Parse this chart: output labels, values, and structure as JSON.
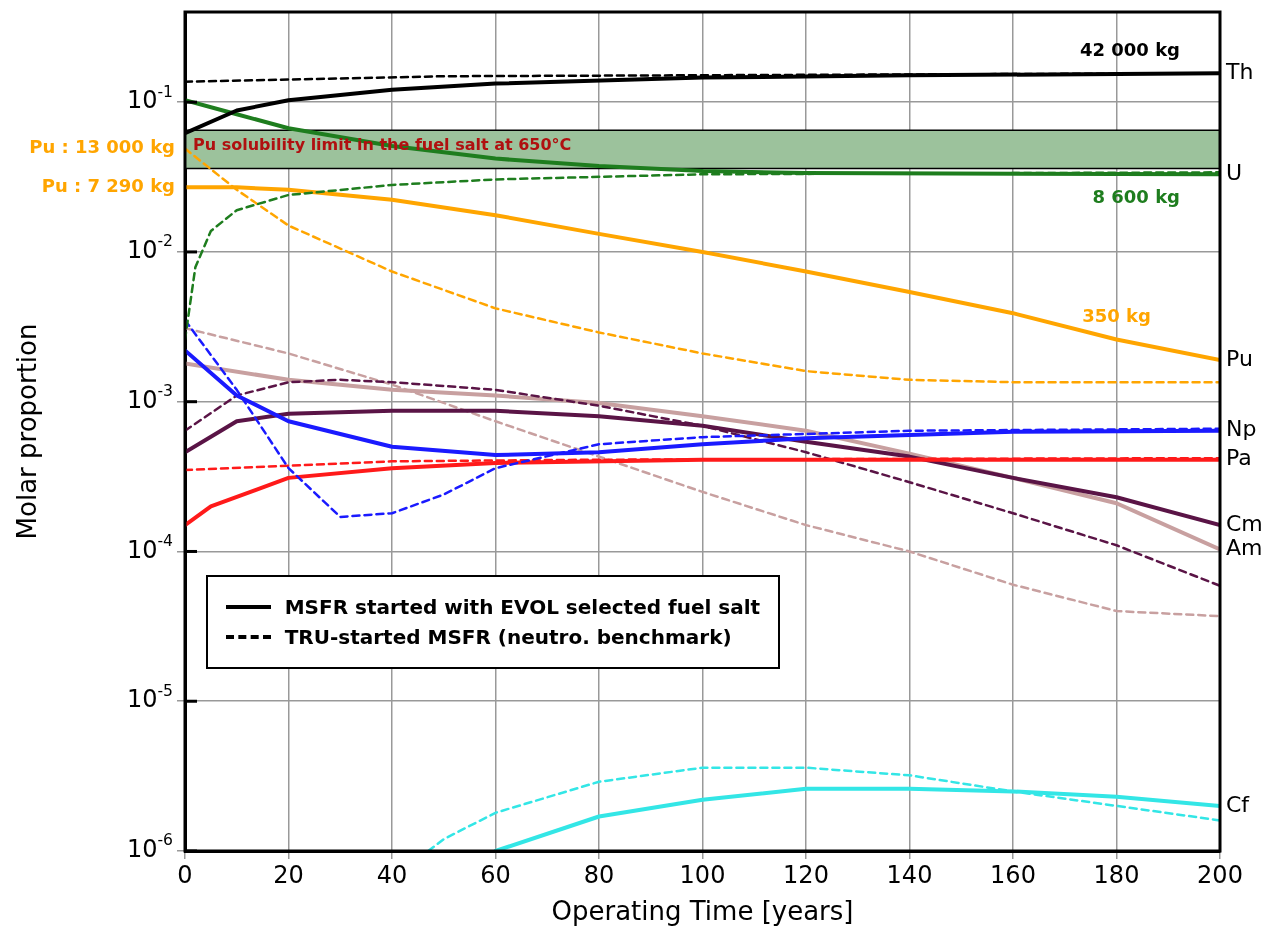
{
  "chart_data": {
    "type": "line",
    "xlabel": "Operating Time [years]",
    "ylabel": "Molar proportion",
    "log": "y",
    "grid": true,
    "legend": false,
    "xlim": [
      0,
      200
    ],
    "xticks": [
      0,
      20,
      40,
      60,
      80,
      100,
      120,
      140,
      160,
      180,
      200
    ],
    "ylim": [
      1e-06,
      0.4
    ],
    "yticks": [
      {
        "value": 1e-06,
        "label": "10$^{-6}$"
      },
      {
        "value": 1e-05,
        "label": "10$^{-5}$"
      },
      {
        "value": 0.0001,
        "label": "10$^{-4}$"
      },
      {
        "value": 0.001,
        "label": "10$^{-3}$"
      },
      {
        "value": 0.01,
        "label": "10$^{-2}$"
      },
      {
        "value": 0.1,
        "label": "10$^{-1}$"
      }
    ],
    "series": [
      {
        "name": "Th",
        "color": "#000000",
        "line_style": "solid",
        "x": [
          0,
          10,
          20,
          40,
          60,
          100,
          140,
          200
        ],
        "values": [
          0.062,
          0.088,
          0.103,
          0.121,
          0.133,
          0.146,
          0.151,
          0.156
        ]
      },
      {
        "color": "#000000",
        "line_style": "dashed",
        "x": [
          0,
          50,
          200
        ],
        "values": [
          0.137,
          0.149,
          0.156
        ]
      },
      {
        "name": "U",
        "color": "#1e7d1e",
        "line_style": "solid",
        "x": [
          0,
          10,
          20,
          40,
          60,
          80,
          100,
          120,
          200
        ],
        "values": [
          0.103,
          0.083,
          0.067,
          0.051,
          0.042,
          0.0375,
          0.0347,
          0.0336,
          0.033
        ]
      },
      {
        "color": "#1e7d1e",
        "line_style": "dashed",
        "x": [
          0,
          2,
          5,
          10,
          20,
          40,
          60,
          100,
          200
        ],
        "values": [
          0.0026,
          0.0079,
          0.0138,
          0.019,
          0.024,
          0.028,
          0.0305,
          0.033,
          0.034
        ]
      },
      {
        "name": "Pu",
        "color": "#ffa500",
        "line_style": "solid",
        "x": [
          0,
          10,
          20,
          40,
          60,
          80,
          100,
          120,
          140,
          160,
          180,
          200
        ],
        "values": [
          0.027,
          0.027,
          0.026,
          0.0223,
          0.0176,
          0.0132,
          0.01,
          0.0074,
          0.0054,
          0.0039,
          0.0026,
          0.0019
        ]
      },
      {
        "color": "#ffa500",
        "line_style": "dashed",
        "x": [
          0,
          10,
          20,
          40,
          60,
          80,
          100,
          120,
          140,
          160,
          200
        ],
        "values": [
          0.049,
          0.026,
          0.015,
          0.0074,
          0.0042,
          0.0029,
          0.0021,
          0.0016,
          0.0014,
          0.00135,
          0.00135
        ]
      },
      {
        "name": "Np",
        "color": "#1a1aff",
        "line_style": "solid",
        "x": [
          0,
          10,
          20,
          40,
          60,
          80,
          100,
          120,
          160,
          200
        ],
        "values": [
          0.0022,
          0.0011,
          0.00074,
          0.0005,
          0.00044,
          0.00046,
          0.00052,
          0.00057,
          0.00063,
          0.00064
        ]
      },
      {
        "color": "#1a1aff",
        "line_style": "dashed",
        "x": [
          0,
          10,
          20,
          30,
          40,
          50,
          60,
          80,
          100,
          140,
          200
        ],
        "values": [
          0.0035,
          0.0012,
          0.00036,
          0.00017,
          0.00018,
          0.00024,
          0.00036,
          0.00052,
          0.00058,
          0.00064,
          0.00066
        ]
      },
      {
        "name": "Pa",
        "color": "#ff1a1a",
        "line_style": "solid",
        "x": [
          0,
          5,
          20,
          40,
          60,
          100,
          200
        ],
        "values": [
          0.00015,
          0.0002,
          0.00031,
          0.00036,
          0.00039,
          0.00041,
          0.00041
        ]
      },
      {
        "color": "#ff1a1a",
        "line_style": "dashed",
        "x": [
          0,
          40,
          80,
          200
        ],
        "values": [
          0.00035,
          0.0004,
          0.00041,
          0.00042
        ]
      },
      {
        "name": "Cm",
        "color": "#5a1446",
        "line_style": "solid",
        "x": [
          0,
          10,
          20,
          40,
          60,
          80,
          100,
          120,
          140,
          160,
          180,
          200
        ],
        "values": [
          0.00046,
          0.00074,
          0.00083,
          0.00087,
          0.00087,
          0.0008,
          0.00069,
          0.00054,
          0.00043,
          0.00031,
          0.00023,
          0.00015
        ]
      },
      {
        "color": "#5a1446",
        "line_style": "dashed",
        "x": [
          0,
          10,
          20,
          30,
          40,
          60,
          80,
          100,
          120,
          140,
          160,
          180,
          200
        ],
        "values": [
          0.00064,
          0.0011,
          0.00135,
          0.0014,
          0.00135,
          0.0012,
          0.00094,
          0.00069,
          0.00046,
          0.00029,
          0.00018,
          0.00011,
          5.9e-05
        ]
      },
      {
        "name": "Am",
        "color": "#c8a0a0",
        "line_style": "solid",
        "x": [
          0,
          20,
          40,
          60,
          80,
          100,
          120,
          140,
          160,
          180,
          200
        ],
        "values": [
          0.0018,
          0.0014,
          0.0012,
          0.0011,
          0.00098,
          0.0008,
          0.00064,
          0.00045,
          0.00031,
          0.00021,
          0.000103
        ]
      },
      {
        "color": "#c8a0a0",
        "line_style": "dashed",
        "x": [
          0,
          20,
          40,
          60,
          80,
          100,
          120,
          140,
          160,
          180,
          200
        ],
        "values": [
          0.0031,
          0.0021,
          0.0013,
          0.00074,
          0.00043,
          0.00025,
          0.00015,
          0.0001,
          6e-05,
          4e-05,
          3.7e-05
        ]
      },
      {
        "name": "Cf",
        "color": "#33e6e6",
        "line_style": "solid",
        "x": [
          60,
          80,
          100,
          120,
          140,
          160,
          180,
          200
        ],
        "values": [
          1e-06,
          1.7e-06,
          2.2e-06,
          2.6e-06,
          2.6e-06,
          2.5e-06,
          2.3e-06,
          2e-06
        ]
      },
      {
        "color": "#33e6e6",
        "line_style": "dashed",
        "x": [
          47,
          50,
          60,
          80,
          100,
          120,
          140,
          160,
          180,
          200
        ],
        "values": [
          1e-06,
          1.2e-06,
          1.8e-06,
          2.9e-06,
          3.6e-06,
          3.6e-06,
          3.2e-06,
          2.5e-06,
          2e-06,
          1.6e-06
        ]
      }
    ],
    "bands": [
      {
        "axis": "y",
        "from": 0.036,
        "to": 0.065,
        "label": "Pu solubility limit in the fuel salt at 650°C",
        "color": "#9cc29c"
      }
    ],
    "annotations": [
      {
        "text": "42 000 kg",
        "x": 200,
        "y": 0.156
      },
      {
        "text": "8 600 kg",
        "x": 200,
        "y": 0.033
      },
      {
        "text": "350 kg",
        "x": 180,
        "y": 0.0026
      },
      {
        "text": "Pu : 13 000 kg",
        "x": 0,
        "y": 0.049
      },
      {
        "text": "Pu : 7 290 kg",
        "x": 0,
        "y": 0.027
      },
      "MSFR started with EVOL selected fuel salt",
      "TRU-started MSFR (neutro. benchmark)"
    ]
  }
}
